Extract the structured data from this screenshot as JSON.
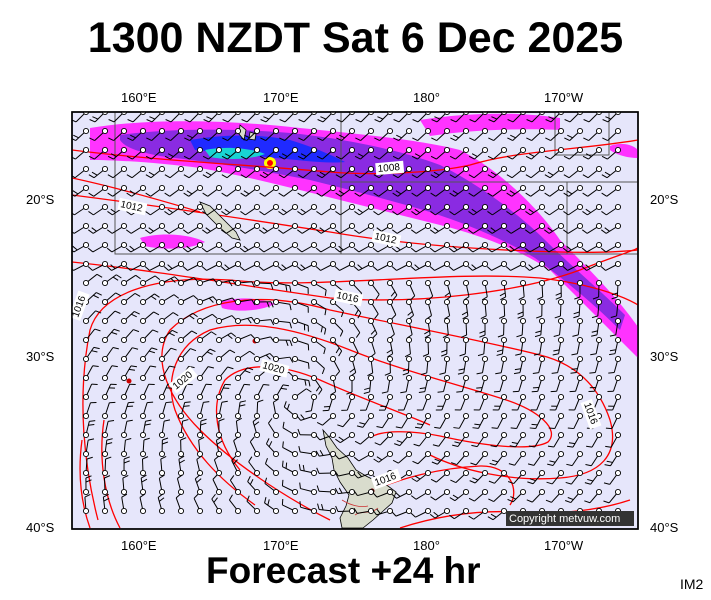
{
  "title": "1300 NZDT Sat 6 Dec 2025",
  "footer": "Forecast +24 hr",
  "image_id_label": "IM2",
  "copyright": "Copyright metvuw.com",
  "longitude_labels": [
    "160°E",
    "170°E",
    "180°",
    "170°W"
  ],
  "latitude_labels": [
    "20°S",
    "30°S",
    "40°S"
  ],
  "isobar_labels": [
    "1008",
    "1012",
    "1012",
    "1016",
    "1016",
    "1020",
    "1020",
    "1016",
    "1016"
  ],
  "colors": {
    "ocean": "#e6e6fb",
    "isobar": "#ff0000",
    "land": "#d9dccd",
    "rain_light": "#ff33ff",
    "rain_medium": "#8a2be2",
    "rain_heavy": "#1f2aff",
    "rain_extreme": "#19d3d3"
  }
}
